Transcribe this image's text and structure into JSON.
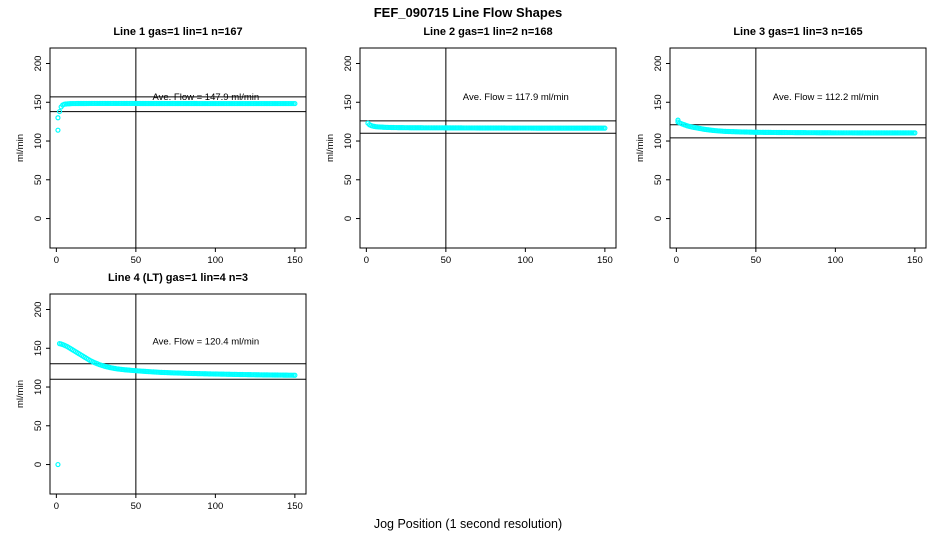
{
  "figure": {
    "title": "FEF_090715  Line Flow Shapes",
    "xlabel": "Jog Position (1 second resolution)"
  },
  "chart_data": [
    {
      "type": "scatter",
      "title": "Line 1 gas=1 lin=1 n=167",
      "ylabel": "ml/min",
      "annotation": "Ave. Flow =  147.9  ml/min",
      "ave_flow_ml_min": 147.9,
      "n": 167,
      "xlim": [
        -4,
        157
      ],
      "ylim": [
        -38,
        220
      ],
      "xticks": [
        0,
        50,
        100,
        150
      ],
      "yticks": [
        0,
        50,
        100,
        150,
        200
      ],
      "vline_x": 50,
      "hlines": [
        138,
        157
      ],
      "annotation_xy": [
        94,
        153
      ],
      "point_color": "#00FFFF",
      "outlier_points": [
        [
          1,
          114
        ],
        [
          1,
          130
        ]
      ],
      "curve_points": [
        [
          2,
          138
        ],
        [
          3,
          144
        ],
        [
          4,
          146.5
        ],
        [
          5,
          147.5
        ],
        [
          7,
          148
        ],
        [
          10,
          148.3
        ],
        [
          15,
          148.4
        ],
        [
          25,
          148.5
        ],
        [
          40,
          148.5
        ],
        [
          60,
          148.4
        ],
        [
          80,
          148.4
        ],
        [
          100,
          148.3
        ],
        [
          125,
          148.3
        ],
        [
          150,
          148.3
        ]
      ]
    },
    {
      "type": "scatter",
      "title": "Line 2 gas=1 lin=2 n=168",
      "ylabel": "ml/min",
      "annotation": "Ave. Flow =  117.9  ml/min",
      "ave_flow_ml_min": 117.9,
      "n": 168,
      "xlim": [
        -4,
        157
      ],
      "ylim": [
        -38,
        220
      ],
      "xticks": [
        0,
        50,
        100,
        150
      ],
      "yticks": [
        0,
        50,
        100,
        150,
        200
      ],
      "vline_x": 50,
      "hlines": [
        110,
        126
      ],
      "annotation_xy": [
        94,
        153
      ],
      "point_color": "#00FFFF",
      "outlier_points": [
        [
          1,
          123
        ]
      ],
      "curve_points": [
        [
          2,
          121
        ],
        [
          3,
          120
        ],
        [
          4,
          119.3
        ],
        [
          6,
          118.5
        ],
        [
          9,
          118
        ],
        [
          13,
          117.6
        ],
        [
          20,
          117.3
        ],
        [
          30,
          117.1
        ],
        [
          50,
          117
        ],
        [
          75,
          116.8
        ],
        [
          100,
          116.7
        ],
        [
          125,
          116.6
        ],
        [
          150,
          116.6
        ]
      ]
    },
    {
      "type": "scatter",
      "title": "Line 3 gas=1 lin=3 n=165",
      "ylabel": "ml/min",
      "annotation": "Ave. Flow =  112.2  ml/min",
      "ave_flow_ml_min": 112.2,
      "n": 165,
      "xlim": [
        -4,
        157
      ],
      "ylim": [
        -38,
        220
      ],
      "xticks": [
        0,
        50,
        100,
        150
      ],
      "yticks": [
        0,
        50,
        100,
        150,
        200
      ],
      "vline_x": 50,
      "hlines": [
        104,
        121
      ],
      "annotation_xy": [
        94,
        153
      ],
      "point_color": "#00FFFF",
      "outlier_points": [
        [
          1,
          127
        ]
      ],
      "curve_points": [
        [
          1,
          124.5
        ],
        [
          2,
          123.5
        ],
        [
          3,
          122.5
        ],
        [
          5,
          121
        ],
        [
          7,
          119.5
        ],
        [
          10,
          118
        ],
        [
          14,
          116.5
        ],
        [
          18,
          115
        ],
        [
          24,
          113.5
        ],
        [
          30,
          112.5
        ],
        [
          40,
          111.8
        ],
        [
          50,
          111.3
        ],
        [
          65,
          111
        ],
        [
          80,
          110.8
        ],
        [
          100,
          110.6
        ],
        [
          125,
          110.5
        ],
        [
          150,
          110.5
        ]
      ]
    },
    {
      "type": "scatter",
      "title": "Line 4 (LT) gas=1 lin=4 n=3",
      "ylabel": "ml/min",
      "annotation": "Ave. Flow =  120.4  ml/min",
      "ave_flow_ml_min": 120.4,
      "n": 3,
      "xlim": [
        -4,
        157
      ],
      "ylim": [
        -38,
        220
      ],
      "xticks": [
        0,
        50,
        100,
        150
      ],
      "yticks": [
        0,
        50,
        100,
        150,
        200
      ],
      "vline_x": 50,
      "hlines": [
        110,
        130
      ],
      "annotation_xy": [
        94,
        155
      ],
      "point_color": "#00FFFF",
      "outlier_points": [
        [
          1,
          0
        ]
      ],
      "curve_points": [
        [
          2,
          156
        ],
        [
          3,
          155.5
        ],
        [
          5,
          154
        ],
        [
          7,
          152
        ],
        [
          9,
          149.5
        ],
        [
          11,
          147
        ],
        [
          13,
          144.5
        ],
        [
          15,
          142
        ],
        [
          17,
          139.5
        ],
        [
          19,
          137
        ],
        [
          21,
          134.5
        ],
        [
          24,
          131.5
        ],
        [
          27,
          129
        ],
        [
          30,
          127
        ],
        [
          34,
          125
        ],
        [
          38,
          123.5
        ],
        [
          43,
          122.3
        ],
        [
          48,
          121.4
        ],
        [
          55,
          120.3
        ],
        [
          65,
          119
        ],
        [
          75,
          118.2
        ],
        [
          85,
          117.5
        ],
        [
          100,
          116.8
        ],
        [
          115,
          116.2
        ],
        [
          130,
          115.7
        ],
        [
          150,
          115.2
        ]
      ]
    }
  ]
}
